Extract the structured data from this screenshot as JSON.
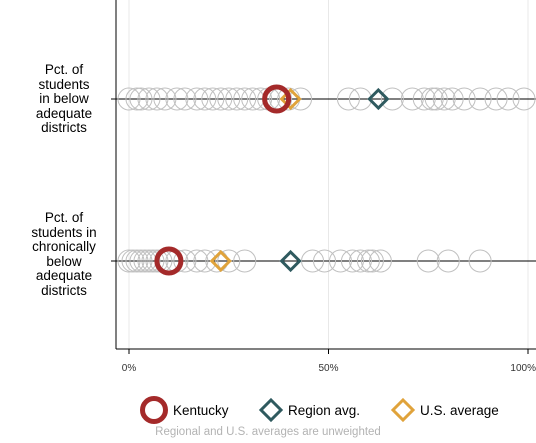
{
  "chart_data": {
    "type": "scatter",
    "categories": [
      "Pct. of\nstudents\nin below\nadequate\ndistricts",
      "Pct. of\nstudents in\nchronically\nbelow\nadequate\ndistricts"
    ],
    "x_ticks": [
      "0%",
      "50%",
      "100%"
    ],
    "xlim": [
      0,
      100
    ],
    "grid": true,
    "series": [
      {
        "name": "Other states",
        "marker": "hollow-circle",
        "color": "#c0c0c0",
        "values": [
          [
            0,
            2,
            3,
            5,
            7,
            9,
            12,
            14,
            17,
            19,
            21,
            23,
            25,
            27,
            29,
            31,
            33,
            35,
            38,
            40,
            43,
            55,
            58,
            66,
            71,
            74,
            76,
            77,
            79,
            81,
            84,
            88,
            92,
            95,
            99
          ],
          [
            0,
            1,
            2,
            3,
            4,
            5,
            6,
            7,
            8,
            10,
            12,
            14,
            17,
            19,
            22,
            25,
            29,
            46,
            49,
            53,
            56,
            58,
            60,
            61,
            63,
            75,
            80,
            88
          ]
        ]
      },
      {
        "name": "Kentucky",
        "marker": "circle",
        "color": "#a42a2a",
        "values": [
          37,
          10
        ]
      },
      {
        "name": "Region avg.",
        "marker": "diamond",
        "color": "#2f5a5f",
        "values": [
          62.5,
          40.5
        ]
      },
      {
        "name": "U.S. average",
        "marker": "diamond",
        "color": "#e0a33b",
        "values": [
          40.5,
          23
        ]
      }
    ],
    "legend": {
      "items": [
        "Kentucky",
        "Region avg.",
        "U.S. average"
      ],
      "placement": "bottom",
      "note": "Regional and U.S. averages are unweighted"
    }
  }
}
